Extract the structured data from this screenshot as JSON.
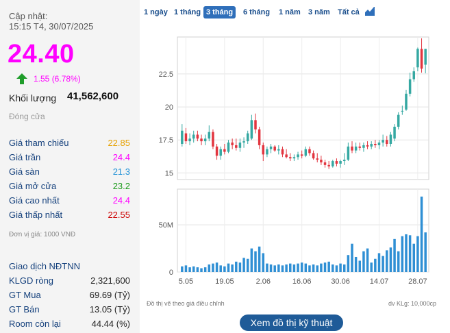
{
  "header": {
    "update_label": "Cập nhật:",
    "update_time": "15:15 T4, 30/07/2025"
  },
  "quote": {
    "price": "24.40",
    "change": "1.55 (6.78%)",
    "volume_label": "Khối lượng",
    "volume_value": "41,562,600",
    "status": "Đóng cửa"
  },
  "price_rows": [
    {
      "label": "Giá tham chiếu",
      "value": "22.85",
      "color": "#e6a100"
    },
    {
      "label": "Giá trần",
      "value": "24.4",
      "color": "#ff00ff"
    },
    {
      "label": "Giá sàn",
      "value": "21.3",
      "color": "#1e90d6"
    },
    {
      "label": "Giá mở cửa",
      "value": "23.2",
      "color": "#1a9a1a"
    },
    {
      "label": "Giá cao nhất",
      "value": "24.4",
      "color": "#ff00ff"
    },
    {
      "label": "Giá thấp nhất",
      "value": "22.55",
      "color": "#cc0000"
    }
  ],
  "unit_note": "Đơn vị giá: 1000 VNĐ",
  "foreign": {
    "title": "Giao dịch NĐTNN",
    "rows": [
      {
        "label": "KLGD ròng",
        "value": "2,321,600"
      },
      {
        "label": "GT Mua",
        "value": "69.69 (Tỷ)"
      },
      {
        "label": "GT Bán",
        "value": "13.05 (Tỷ)"
      },
      {
        "label": "Room còn lại",
        "value": "44.44 (%)"
      }
    ]
  },
  "tabs": [
    "1 ngày",
    "1 tháng",
    "3 tháng",
    "6 tháng",
    "1 năm",
    "3 năm",
    "Tất cả"
  ],
  "active_tab": "3 tháng",
  "chart_icon": "area-chart-icon",
  "colors": {
    "up": "#35a8a2",
    "down": "#e2353f",
    "volume": "#2f8fd4",
    "price": "#ff00ff"
  },
  "chart_data": {
    "type": "candlestick",
    "price_ticks": [
      "15",
      "17.5",
      "20",
      "22.5"
    ],
    "price_tick_values": [
      15,
      17.5,
      20,
      22.5
    ],
    "ylim": [
      14.5,
      25.3
    ],
    "volume_ticks": [
      "0",
      "50M"
    ],
    "volume_tick_values": [
      0,
      50
    ],
    "volume_max": 85,
    "x_ticks": [
      "5.05",
      "19.05",
      "2.06",
      "16.06",
      "30.06",
      "14.07",
      "28.07"
    ],
    "x_tick_index": [
      1,
      11,
      21,
      31,
      41,
      51,
      61
    ],
    "candles": [
      {
        "o": 17.2,
        "h": 18.7,
        "l": 17.0,
        "c": 18.2,
        "v": 6
      },
      {
        "o": 18.0,
        "h": 18.4,
        "l": 17.2,
        "c": 17.4,
        "v": 7
      },
      {
        "o": 17.4,
        "h": 18.0,
        "l": 17.1,
        "c": 17.6,
        "v": 5
      },
      {
        "o": 17.6,
        "h": 18.2,
        "l": 17.3,
        "c": 17.9,
        "v": 6
      },
      {
        "o": 17.9,
        "h": 18.2,
        "l": 17.4,
        "c": 17.6,
        "v": 5
      },
      {
        "o": 17.6,
        "h": 17.9,
        "l": 17.1,
        "c": 17.4,
        "v": 4
      },
      {
        "o": 17.4,
        "h": 17.9,
        "l": 17.1,
        "c": 17.6,
        "v": 5
      },
      {
        "o": 17.6,
        "h": 18.6,
        "l": 17.4,
        "c": 18.1,
        "v": 8
      },
      {
        "o": 18.1,
        "h": 18.3,
        "l": 16.8,
        "c": 17.0,
        "v": 9
      },
      {
        "o": 17.0,
        "h": 17.2,
        "l": 16.0,
        "c": 16.3,
        "v": 10
      },
      {
        "o": 16.3,
        "h": 17.0,
        "l": 16.0,
        "c": 16.8,
        "v": 7
      },
      {
        "o": 16.8,
        "h": 17.2,
        "l": 16.4,
        "c": 16.6,
        "v": 6
      },
      {
        "o": 16.6,
        "h": 17.5,
        "l": 16.5,
        "c": 17.3,
        "v": 9
      },
      {
        "o": 17.3,
        "h": 17.6,
        "l": 16.8,
        "c": 17.1,
        "v": 8
      },
      {
        "o": 17.1,
        "h": 17.6,
        "l": 16.7,
        "c": 16.9,
        "v": 11
      },
      {
        "o": 16.9,
        "h": 17.6,
        "l": 16.6,
        "c": 17.3,
        "v": 10
      },
      {
        "o": 17.3,
        "h": 17.7,
        "l": 16.9,
        "c": 17.4,
        "v": 15
      },
      {
        "o": 17.4,
        "h": 18.2,
        "l": 17.2,
        "c": 18.0,
        "v": 14
      },
      {
        "o": 17.6,
        "h": 19.4,
        "l": 17.5,
        "c": 19.0,
        "v": 25
      },
      {
        "o": 19.0,
        "h": 19.5,
        "l": 18.0,
        "c": 18.3,
        "v": 22
      },
      {
        "o": 18.3,
        "h": 18.5,
        "l": 16.8,
        "c": 17.1,
        "v": 27
      },
      {
        "o": 17.1,
        "h": 17.3,
        "l": 15.9,
        "c": 16.4,
        "v": 20
      },
      {
        "o": 16.4,
        "h": 17.0,
        "l": 16.2,
        "c": 16.8,
        "v": 9
      },
      {
        "o": 16.8,
        "h": 17.2,
        "l": 16.5,
        "c": 17.0,
        "v": 8
      },
      {
        "o": 17.0,
        "h": 17.1,
        "l": 16.6,
        "c": 16.7,
        "v": 7
      },
      {
        "o": 16.7,
        "h": 17.1,
        "l": 16.4,
        "c": 16.8,
        "v": 8
      },
      {
        "o": 16.8,
        "h": 17.0,
        "l": 16.2,
        "c": 16.4,
        "v": 7
      },
      {
        "o": 16.4,
        "h": 16.8,
        "l": 16.1,
        "c": 16.2,
        "v": 8
      },
      {
        "o": 16.2,
        "h": 16.5,
        "l": 15.9,
        "c": 16.1,
        "v": 9
      },
      {
        "o": 16.1,
        "h": 16.4,
        "l": 15.9,
        "c": 16.2,
        "v": 8
      },
      {
        "o": 16.2,
        "h": 16.6,
        "l": 16.0,
        "c": 16.4,
        "v": 9
      },
      {
        "o": 16.4,
        "h": 16.7,
        "l": 16.1,
        "c": 16.3,
        "v": 10
      },
      {
        "o": 16.3,
        "h": 17.0,
        "l": 16.2,
        "c": 16.8,
        "v": 9
      },
      {
        "o": 16.8,
        "h": 17.0,
        "l": 16.3,
        "c": 16.5,
        "v": 7
      },
      {
        "o": 16.5,
        "h": 16.7,
        "l": 16.0,
        "c": 16.1,
        "v": 8
      },
      {
        "o": 16.1,
        "h": 16.5,
        "l": 15.8,
        "c": 16.0,
        "v": 7
      },
      {
        "o": 16.0,
        "h": 16.3,
        "l": 15.6,
        "c": 15.8,
        "v": 9
      },
      {
        "o": 15.8,
        "h": 16.0,
        "l": 15.4,
        "c": 15.6,
        "v": 10
      },
      {
        "o": 15.6,
        "h": 15.9,
        "l": 15.3,
        "c": 15.5,
        "v": 11
      },
      {
        "o": 15.5,
        "h": 16.0,
        "l": 15.4,
        "c": 15.9,
        "v": 8
      },
      {
        "o": 15.9,
        "h": 16.1,
        "l": 15.5,
        "c": 15.7,
        "v": 7
      },
      {
        "o": 15.7,
        "h": 16.0,
        "l": 15.4,
        "c": 15.9,
        "v": 9
      },
      {
        "o": 15.9,
        "h": 16.5,
        "l": 15.6,
        "c": 16.0,
        "v": 8
      },
      {
        "o": 16.0,
        "h": 17.3,
        "l": 15.9,
        "c": 17.0,
        "v": 18
      },
      {
        "o": 17.0,
        "h": 17.4,
        "l": 16.5,
        "c": 16.7,
        "v": 30
      },
      {
        "o": 16.7,
        "h": 17.3,
        "l": 16.5,
        "c": 17.0,
        "v": 16
      },
      {
        "o": 17.0,
        "h": 17.3,
        "l": 16.7,
        "c": 16.9,
        "v": 12
      },
      {
        "o": 16.9,
        "h": 17.3,
        "l": 16.6,
        "c": 17.1,
        "v": 22
      },
      {
        "o": 17.1,
        "h": 17.4,
        "l": 16.8,
        "c": 17.0,
        "v": 25
      },
      {
        "o": 17.0,
        "h": 17.4,
        "l": 16.8,
        "c": 17.2,
        "v": 10
      },
      {
        "o": 17.2,
        "h": 17.5,
        "l": 16.9,
        "c": 17.1,
        "v": 14
      },
      {
        "o": 17.1,
        "h": 17.5,
        "l": 16.8,
        "c": 17.3,
        "v": 20
      },
      {
        "o": 17.3,
        "h": 17.9,
        "l": 17.0,
        "c": 17.5,
        "v": 17
      },
      {
        "o": 17.5,
        "h": 17.8,
        "l": 17.0,
        "c": 17.2,
        "v": 23
      },
      {
        "o": 17.2,
        "h": 18.1,
        "l": 17.0,
        "c": 17.9,
        "v": 26
      },
      {
        "o": 17.6,
        "h": 18.7,
        "l": 17.4,
        "c": 18.5,
        "v": 35
      },
      {
        "o": 18.5,
        "h": 19.6,
        "l": 18.3,
        "c": 19.4,
        "v": 22
      },
      {
        "o": 19.7,
        "h": 20.1,
        "l": 19.4,
        "c": 19.7,
        "v": 38
      },
      {
        "o": 19.8,
        "h": 21.3,
        "l": 19.7,
        "c": 21.0,
        "v": 40
      },
      {
        "o": 21.0,
        "h": 22.6,
        "l": 20.8,
        "c": 22.1,
        "v": 39
      },
      {
        "o": 22.1,
        "h": 23.0,
        "l": 21.9,
        "c": 22.7,
        "v": 30
      },
      {
        "o": 23.0,
        "h": 24.5,
        "l": 22.7,
        "c": 24.4,
        "v": 38
      },
      {
        "o": 24.4,
        "h": 25.2,
        "l": 22.6,
        "c": 22.9,
        "v": 80
      },
      {
        "o": 23.2,
        "h": 24.4,
        "l": 22.55,
        "c": 24.4,
        "v": 42
      }
    ]
  },
  "footnote_left": "Đồ thị vẽ theo giá điều chỉnh",
  "footnote_right": "dv KLg: 10,000cp",
  "tech_button": "Xem đồ thị kỹ thuật"
}
